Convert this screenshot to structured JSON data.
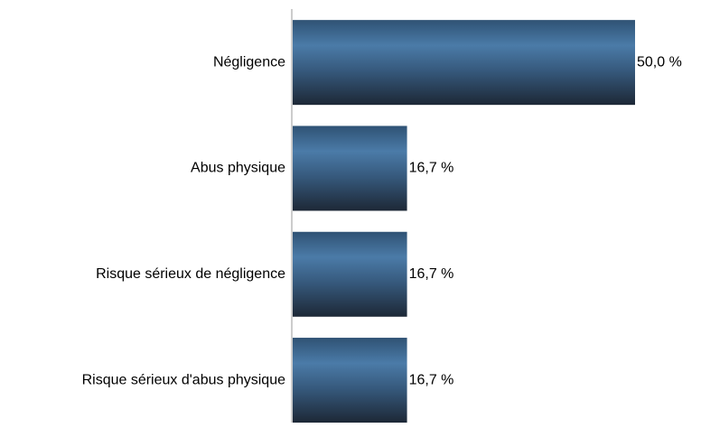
{
  "chart_data": {
    "type": "bar",
    "orientation": "horizontal",
    "categories": [
      "Négligence",
      "Abus physique",
      "Risque sérieux de négligence",
      "Risque sérieux d'abus physique"
    ],
    "values": [
      50.0,
      16.7,
      16.7,
      16.7
    ],
    "value_labels": [
      "50,0 %",
      "16,7 %",
      "16,7 %",
      "16,7 %"
    ],
    "color": "#3f6a95"
  }
}
